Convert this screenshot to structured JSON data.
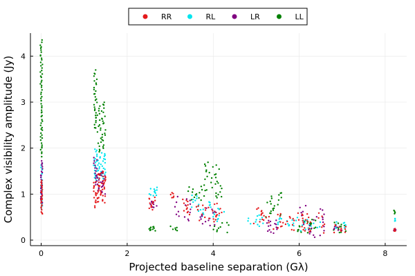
{
  "chart_data": {
    "type": "scatter",
    "title": "",
    "xlabel": "Projected baseline separation (Gλ)",
    "ylabel": "Complex visibility amplitude (Jy)",
    "xlim": [
      -0.25,
      8.5
    ],
    "ylim": [
      -0.12,
      4.5
    ],
    "xticks": [
      0,
      2,
      4,
      6,
      8
    ],
    "yticks": [
      0,
      1,
      2,
      3,
      4
    ],
    "xtick_labels": [
      "0",
      "2",
      "4",
      "6",
      "8"
    ],
    "ytick_labels": [
      "0",
      "1",
      "2",
      "3",
      "4"
    ],
    "grid": true,
    "legend_position": "top-center",
    "series": [
      {
        "name": "RR",
        "color": "#e41a1c",
        "clusters": [
          {
            "x_range": [
              -0.01,
              0.03
            ],
            "y_range": [
              0.55,
              1.3
            ],
            "n": 25
          },
          {
            "x_range": [
              1.22,
              1.28
            ],
            "y_range": [
              0.7,
              1.3
            ],
            "n": 15
          },
          {
            "x_range": [
              1.3,
              1.5
            ],
            "y_range": [
              0.8,
              1.5
            ],
            "n": 40
          },
          {
            "x_range": [
              2.5,
              2.65
            ],
            "y_range": [
              0.65,
              0.95
            ],
            "n": 12
          },
          {
            "x_range": [
              3.0,
              3.1
            ],
            "y_range": [
              0.9,
              1.05
            ],
            "n": 6
          },
          {
            "x_range": [
              3.2,
              3.45
            ],
            "y_range": [
              0.55,
              0.9
            ],
            "n": 12
          },
          {
            "x_range": [
              3.6,
              4.2
            ],
            "y_range": [
              0.4,
              0.8
            ],
            "n": 25
          },
          {
            "x_range": [
              4.9,
              5.3
            ],
            "y_range": [
              0.35,
              0.7
            ],
            "n": 15
          },
          {
            "x_range": [
              5.4,
              6.0
            ],
            "y_range": [
              0.2,
              0.6
            ],
            "n": 20
          },
          {
            "x_range": [
              6.0,
              6.6
            ],
            "y_range": [
              0.15,
              0.6
            ],
            "n": 25
          },
          {
            "x_range": [
              6.8,
              7.1
            ],
            "y_range": [
              0.15,
              0.35
            ],
            "n": 10
          },
          {
            "x_range": [
              8.2,
              8.25
            ],
            "y_range": [
              0.18,
              0.25
            ],
            "n": 4
          }
        ]
      },
      {
        "name": "RL",
        "color": "#00e5ee",
        "clusters": [
          {
            "x_range": [
              -0.01,
              0.03
            ],
            "y_range": [
              0.65,
              1.7
            ],
            "n": 25
          },
          {
            "x_range": [
              1.22,
              1.3
            ],
            "y_range": [
              1.3,
              2.0
            ],
            "n": 20
          },
          {
            "x_range": [
              1.3,
              1.5
            ],
            "y_range": [
              1.3,
              1.9
            ],
            "n": 30
          },
          {
            "x_range": [
              2.5,
              2.7
            ],
            "y_range": [
              0.95,
              1.15
            ],
            "n": 12
          },
          {
            "x_range": [
              3.5,
              3.8
            ],
            "y_range": [
              0.5,
              1.0
            ],
            "n": 15
          },
          {
            "x_range": [
              3.9,
              4.3
            ],
            "y_range": [
              0.4,
              0.85
            ],
            "n": 15
          },
          {
            "x_range": [
              4.8,
              5.2
            ],
            "y_range": [
              0.3,
              0.55
            ],
            "n": 12
          },
          {
            "x_range": [
              5.5,
              6.0
            ],
            "y_range": [
              0.3,
              0.5
            ],
            "n": 15
          },
          {
            "x_range": [
              6.0,
              6.5
            ],
            "y_range": [
              0.2,
              0.45
            ],
            "n": 15
          },
          {
            "x_range": [
              6.8,
              7.1
            ],
            "y_range": [
              0.25,
              0.4
            ],
            "n": 10
          },
          {
            "x_range": [
              8.2,
              8.25
            ],
            "y_range": [
              0.4,
              0.48
            ],
            "n": 4
          }
        ]
      },
      {
        "name": "LR",
        "color": "#800080",
        "clusters": [
          {
            "x_range": [
              -0.01,
              0.03
            ],
            "y_range": [
              0.8,
              1.75
            ],
            "n": 25
          },
          {
            "x_range": [
              1.22,
              1.3
            ],
            "y_range": [
              1.2,
              1.8
            ],
            "n": 15
          },
          {
            "x_range": [
              1.3,
              1.5
            ],
            "y_range": [
              1.0,
              1.5
            ],
            "n": 25
          },
          {
            "x_range": [
              2.5,
              2.7
            ],
            "y_range": [
              0.7,
              0.85
            ],
            "n": 8
          },
          {
            "x_range": [
              3.1,
              3.5
            ],
            "y_range": [
              0.4,
              0.95
            ],
            "n": 15
          },
          {
            "x_range": [
              3.7,
              4.2
            ],
            "y_range": [
              0.3,
              0.7
            ],
            "n": 15
          },
          {
            "x_range": [
              5.2,
              5.5
            ],
            "y_range": [
              0.15,
              0.45
            ],
            "n": 15
          },
          {
            "x_range": [
              6.0,
              6.6
            ],
            "y_range": [
              0.05,
              0.75
            ],
            "n": 25
          },
          {
            "x_range": [
              6.8,
              7.0
            ],
            "y_range": [
              0.2,
              0.3
            ],
            "n": 6
          },
          {
            "x_range": [
              8.2,
              8.25
            ],
            "y_range": [
              0.2,
              0.25
            ],
            "n": 4
          }
        ]
      },
      {
        "name": "LL",
        "color": "#008000",
        "clusters": [
          {
            "x_range": [
              -0.02,
              0.03
            ],
            "y_range": [
              1.8,
              4.35
            ],
            "n": 60
          },
          {
            "x_range": [
              1.22,
              1.3
            ],
            "y_range": [
              2.4,
              3.7
            ],
            "n": 30
          },
          {
            "x_range": [
              1.3,
              1.5
            ],
            "y_range": [
              1.9,
              3.0
            ],
            "n": 40
          },
          {
            "x_range": [
              2.5,
              2.7
            ],
            "y_range": [
              0.2,
              0.3
            ],
            "n": 10
          },
          {
            "x_range": [
              3.0,
              3.2
            ],
            "y_range": [
              0.2,
              0.3
            ],
            "n": 6
          },
          {
            "x_range": [
              3.4,
              3.8
            ],
            "y_range": [
              0.85,
              1.2
            ],
            "n": 15
          },
          {
            "x_range": [
              3.8,
              4.2
            ],
            "y_range": [
              0.9,
              1.7
            ],
            "n": 30
          },
          {
            "x_range": [
              4.0,
              4.4
            ],
            "y_range": [
              0.15,
              0.4
            ],
            "n": 10
          },
          {
            "x_range": [
              5.2,
              5.6
            ],
            "y_range": [
              0.5,
              1.05
            ],
            "n": 20
          },
          {
            "x_range": [
              5.9,
              6.4
            ],
            "y_range": [
              0.15,
              0.45
            ],
            "n": 20
          },
          {
            "x_range": [
              6.8,
              7.1
            ],
            "y_range": [
              0.15,
              0.4
            ],
            "n": 12
          },
          {
            "x_range": [
              8.2,
              8.25
            ],
            "y_range": [
              0.55,
              0.65
            ],
            "n": 4
          }
        ]
      }
    ]
  }
}
